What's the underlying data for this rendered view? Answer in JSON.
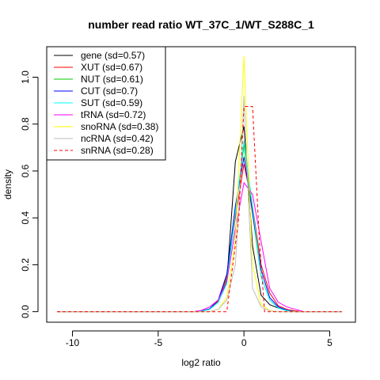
{
  "chart_data": {
    "type": "line",
    "title": "number read ratio WT_37C_1/WT_S288C_1",
    "xlabel": "log2 ratio",
    "ylabel": "density",
    "xlim": [
      -11.5,
      6.5
    ],
    "ylim": [
      -0.045,
      1.13
    ],
    "x_ticks": [
      -10,
      -5,
      0,
      5
    ],
    "y_ticks": [
      0.0,
      0.2,
      0.4,
      0.6,
      0.8,
      1.0
    ],
    "x_tick_labels": [
      "-10",
      "-5",
      "0",
      "5"
    ],
    "y_tick_labels": [
      "0.0",
      "0.2",
      "0.4",
      "0.6",
      "0.8",
      "1.0"
    ],
    "grid": false,
    "legend_position": "top-left",
    "series": [
      {
        "name": "gene (sd=0.57)",
        "color": "#000000",
        "dash": false,
        "points": [
          [
            -10.9,
            0
          ],
          [
            -3,
            0
          ],
          [
            -2.5,
            0.002
          ],
          [
            -2,
            0.01
          ],
          [
            -1.5,
            0.04
          ],
          [
            -1,
            0.13
          ],
          [
            -0.5,
            0.64
          ],
          [
            0,
            0.79
          ],
          [
            0.25,
            0.55
          ],
          [
            0.5,
            0.28
          ],
          [
            1,
            0.07
          ],
          [
            1.5,
            0.03
          ],
          [
            2,
            0.015
          ],
          [
            2.5,
            0.005
          ],
          [
            3,
            0.002
          ],
          [
            3.5,
            0
          ],
          [
            5.7,
            0
          ]
        ]
      },
      {
        "name": "XUT (sd=0.67)",
        "color": "#ff0000",
        "dash": false,
        "points": [
          [
            -10.9,
            0
          ],
          [
            -3,
            0
          ],
          [
            -2.5,
            0.003
          ],
          [
            -2,
            0.012
          ],
          [
            -1.5,
            0.045
          ],
          [
            -1,
            0.15
          ],
          [
            -0.5,
            0.4
          ],
          [
            0,
            0.63
          ],
          [
            0.5,
            0.45
          ],
          [
            1,
            0.2
          ],
          [
            1.5,
            0.08
          ],
          [
            2,
            0.025
          ],
          [
            2.5,
            0.01
          ],
          [
            3,
            0.003
          ],
          [
            3.5,
            0
          ],
          [
            5.7,
            0
          ]
        ]
      },
      {
        "name": "NUT (sd=0.61)",
        "color": "#00cc00",
        "dash": false,
        "points": [
          [
            -10.9,
            0
          ],
          [
            -3,
            0
          ],
          [
            -2.5,
            0.002
          ],
          [
            -2,
            0.01
          ],
          [
            -1.5,
            0.04
          ],
          [
            -1,
            0.14
          ],
          [
            -0.5,
            0.42
          ],
          [
            0,
            0.71
          ],
          [
            0.5,
            0.42
          ],
          [
            1,
            0.15
          ],
          [
            1.5,
            0.05
          ],
          [
            2,
            0.015
          ],
          [
            2.5,
            0.005
          ],
          [
            3,
            0
          ],
          [
            5.7,
            0
          ]
        ]
      },
      {
        "name": "CUT (sd=0.7)",
        "color": "#0000ff",
        "dash": false,
        "points": [
          [
            -10.9,
            0
          ],
          [
            -3,
            0
          ],
          [
            -2.5,
            0.003
          ],
          [
            -2,
            0.012
          ],
          [
            -1.5,
            0.05
          ],
          [
            -1,
            0.16
          ],
          [
            -0.5,
            0.45
          ],
          [
            0,
            0.66
          ],
          [
            0.5,
            0.42
          ],
          [
            1,
            0.18
          ],
          [
            1.5,
            0.06
          ],
          [
            2,
            0.02
          ],
          [
            2.5,
            0.006
          ],
          [
            3,
            0
          ],
          [
            5.7,
            0
          ]
        ]
      },
      {
        "name": "SUT (sd=0.59)",
        "color": "#00ffff",
        "dash": false,
        "points": [
          [
            -10.9,
            0
          ],
          [
            -3,
            0
          ],
          [
            -2.5,
            0.002
          ],
          [
            -2,
            0.01
          ],
          [
            -1.5,
            0.04
          ],
          [
            -1,
            0.12
          ],
          [
            -0.5,
            0.42
          ],
          [
            0,
            0.73
          ],
          [
            0.5,
            0.45
          ],
          [
            1,
            0.15
          ],
          [
            1.5,
            0.05
          ],
          [
            2,
            0.015
          ],
          [
            2.5,
            0.004
          ],
          [
            3,
            0
          ],
          [
            5.7,
            0
          ]
        ]
      },
      {
        "name": "tRNA (sd=0.72)",
        "color": "#ff00ff",
        "dash": false,
        "points": [
          [
            -10.9,
            0
          ],
          [
            -3,
            0
          ],
          [
            -2.5,
            0.005
          ],
          [
            -2,
            0.02
          ],
          [
            -1.5,
            0.05
          ],
          [
            -1,
            0.13
          ],
          [
            -0.5,
            0.35
          ],
          [
            0,
            0.55
          ],
          [
            0.5,
            0.5
          ],
          [
            1,
            0.3
          ],
          [
            1.5,
            0.1
          ],
          [
            2,
            0.04
          ],
          [
            2.5,
            0.02
          ],
          [
            3,
            0.01
          ],
          [
            3.5,
            0
          ],
          [
            5.7,
            0
          ]
        ]
      },
      {
        "name": "snoRNA (sd=0.38)",
        "color": "#ffff00",
        "dash": false,
        "points": [
          [
            -10.9,
            0
          ],
          [
            -2,
            0
          ],
          [
            -1.5,
            0.01
          ],
          [
            -1,
            0.06
          ],
          [
            -0.5,
            0.3
          ],
          [
            0,
            1.09
          ],
          [
            0.25,
            0.62
          ],
          [
            0.5,
            0.2
          ],
          [
            1,
            0.03
          ],
          [
            1.5,
            0.005
          ],
          [
            2,
            0
          ],
          [
            5.7,
            0
          ]
        ]
      },
      {
        "name": "ncRNA (sd=0.42)",
        "color": "#bebebe",
        "dash": false,
        "points": [
          [
            -10.9,
            0
          ],
          [
            -2,
            0
          ],
          [
            -1.5,
            0.01
          ],
          [
            -1,
            0.05
          ],
          [
            -0.5,
            0.2
          ],
          [
            -0.25,
            0.5
          ],
          [
            0,
            0.92
          ],
          [
            0.25,
            0.5
          ],
          [
            0.5,
            0.1
          ],
          [
            1,
            0.02
          ],
          [
            1.5,
            0.003
          ],
          [
            2,
            0
          ],
          [
            5.7,
            0
          ]
        ]
      },
      {
        "name": "snRNA (sd=0.28)",
        "color": "#ff0000",
        "dash": true,
        "points": [
          [
            -10.9,
            0
          ],
          [
            -1,
            0
          ],
          [
            -0.3,
            0.4
          ],
          [
            0,
            0.875
          ],
          [
            0.5,
            0.875
          ],
          [
            0.9,
            0.3
          ],
          [
            1.2,
            0
          ],
          [
            5.7,
            0
          ]
        ]
      }
    ]
  }
}
